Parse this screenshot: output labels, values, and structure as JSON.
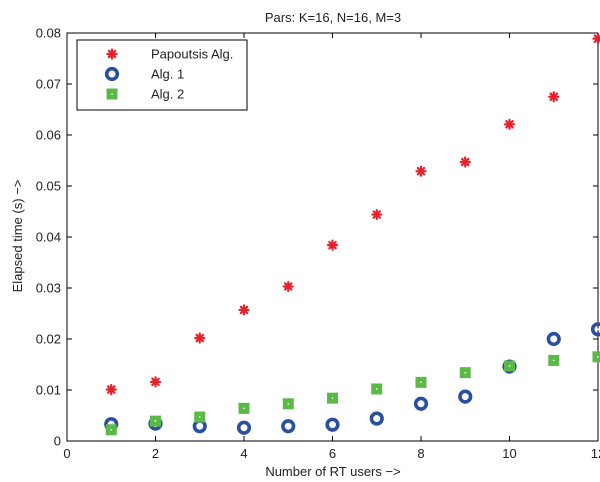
{
  "chart_data": {
    "type": "scatter",
    "title": "Pars: K=16, N=16, M=3",
    "xlabel": "Number of RT users −>",
    "ylabel": "Elapsed time (s) −>",
    "xlim": [
      0,
      12
    ],
    "ylim": [
      0,
      0.08
    ],
    "xticks": [
      0,
      2,
      4,
      6,
      8,
      10,
      12
    ],
    "yticks": [
      0,
      0.01,
      0.02,
      0.03,
      0.04,
      0.05,
      0.06,
      0.07,
      0.08
    ],
    "xtick_labels": [
      "0",
      "2",
      "4",
      "6",
      "8",
      "10",
      "12"
    ],
    "ytick_labels": [
      "0",
      "0.01",
      "0.02",
      "0.03",
      "0.04",
      "0.05",
      "0.06",
      "0.07",
      "0.08"
    ],
    "grid": false,
    "legend_position": "top-left",
    "series": [
      {
        "name": "Papoutsis Alg.",
        "marker": "asterisk",
        "color": "#e8202a",
        "x": [
          1,
          2,
          3,
          4,
          5,
          6,
          7,
          8,
          9,
          10,
          11,
          12
        ],
        "y": [
          0.0101,
          0.0116,
          0.0202,
          0.0257,
          0.0303,
          0.0384,
          0.0444,
          0.0529,
          0.0547,
          0.0621,
          0.0675,
          0.0789
        ]
      },
      {
        "name": "Alg. 1",
        "marker": "ring",
        "color": "#2b4fa0",
        "x": [
          1,
          2,
          3,
          4,
          5,
          6,
          7,
          8,
          9,
          10,
          11,
          12
        ],
        "y": [
          0.0033,
          0.0034,
          0.0029,
          0.0026,
          0.0029,
          0.0032,
          0.0044,
          0.0073,
          0.0087,
          0.0146,
          0.02,
          0.0219
        ]
      },
      {
        "name": "Alg. 2",
        "marker": "square",
        "color": "#5ab947",
        "x": [
          1,
          2,
          3,
          4,
          5,
          6,
          7,
          8,
          9,
          10,
          11,
          12
        ],
        "y": [
          0.0022,
          0.0039,
          0.0047,
          0.0064,
          0.0073,
          0.0084,
          0.0102,
          0.0115,
          0.0134,
          0.0147,
          0.0158,
          0.0165
        ]
      }
    ]
  }
}
